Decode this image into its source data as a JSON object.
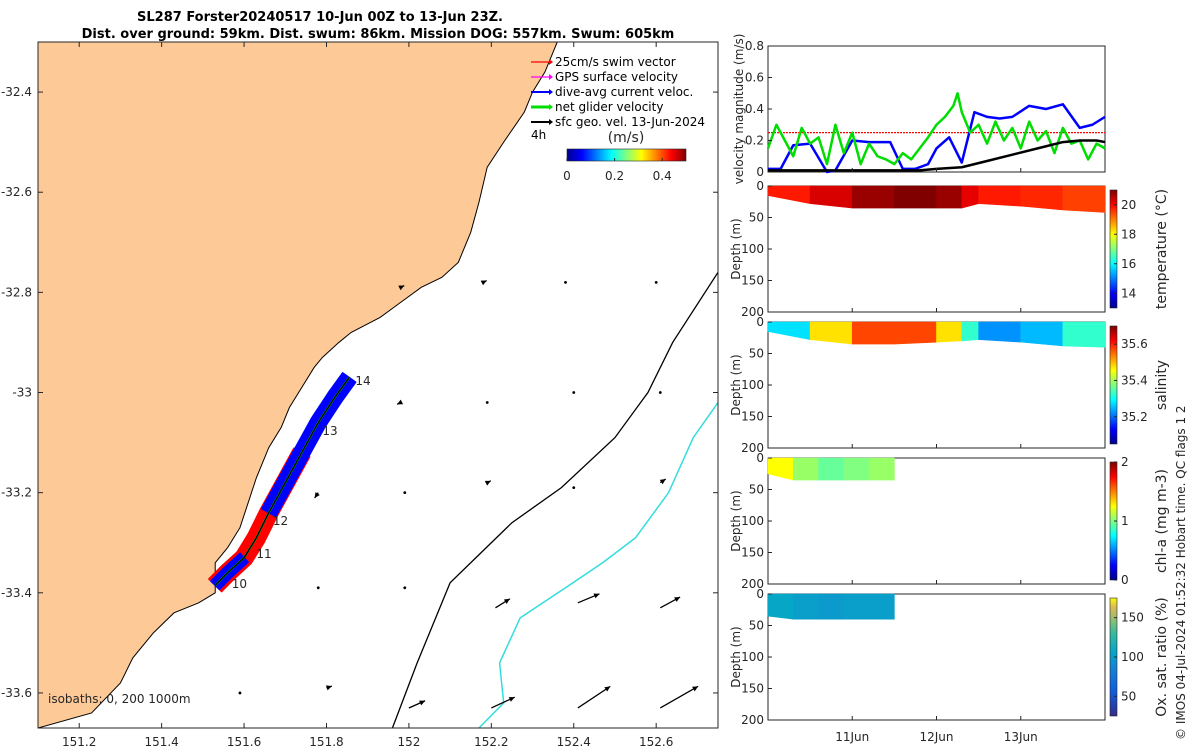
{
  "title": {
    "line1": "SL287 Forster20240517 10-Jun 00Z to 13-Jun 23Z.",
    "line2": "Dist. over ground: 59km. Dist. swum: 86km. Mission DOG: 557km. Swum: 605km"
  },
  "colors": {
    "land": "#fdca97",
    "swim_vector": "#ff0000",
    "gps_velocity": "#ff00ff",
    "dive_avg": "#0000ff",
    "net_glider": "#00dd00",
    "sfc_geo": "#000000",
    "isobath_200": "#000000",
    "isobath_1000": "#33dddd"
  },
  "chart_data": [
    {
      "type": "map",
      "name": "track-map",
      "xlim": [
        151.1,
        152.75
      ],
      "ylim": [
        -33.67,
        -32.3
      ],
      "xticks": [
        151.2,
        151.4,
        151.6,
        151.8,
        152,
        152.2,
        152.4,
        152.6
      ],
      "yticks": [
        -32.4,
        -32.6,
        -32.8,
        -33,
        -33.2,
        -33.4,
        -33.6
      ],
      "legend": {
        "placement": "top-right",
        "entries": [
          "25cm/s swim vector",
          "GPS surface velocity",
          "dive-avg current veloc.",
          "net glider velocity",
          "sfc geo. vel. 13-Jun-2024"
        ]
      },
      "interval_label": "4h",
      "colorbar": {
        "label": "(m/s)",
        "ticks": [
          0,
          0.2,
          0.4
        ],
        "range": [
          0,
          0.5
        ]
      },
      "isobath_label": "isobaths: 0, 200  1000m",
      "day_labels": [
        {
          "text": "10",
          "lon": 151.57,
          "lat": -33.39
        },
        {
          "text": "11",
          "lon": 151.63,
          "lat": -33.33
        },
        {
          "text": "12",
          "lon": 151.67,
          "lat": -33.265
        },
        {
          "text": "13",
          "lon": 151.79,
          "lat": -33.085
        },
        {
          "text": "14",
          "lon": 151.87,
          "lat": -32.985
        }
      ],
      "track": [
        [
          151.53,
          -33.385
        ],
        [
          151.56,
          -33.36
        ],
        [
          151.6,
          -33.33
        ],
        [
          151.63,
          -33.29
        ],
        [
          151.66,
          -33.24
        ],
        [
          151.7,
          -33.18
        ],
        [
          151.74,
          -33.12
        ],
        [
          151.78,
          -33.06
        ],
        [
          151.82,
          -33.01
        ],
        [
          151.855,
          -32.97
        ]
      ],
      "coastline": [
        [
          151.1,
          -33.67
        ],
        [
          151.23,
          -33.64
        ],
        [
          151.3,
          -33.58
        ],
        [
          151.33,
          -33.53
        ],
        [
          151.38,
          -33.48
        ],
        [
          151.43,
          -33.44
        ],
        [
          151.49,
          -33.42
        ],
        [
          151.53,
          -33.4
        ],
        [
          151.53,
          -33.34
        ],
        [
          151.56,
          -33.31
        ],
        [
          151.59,
          -33.27
        ],
        [
          151.63,
          -33.17
        ],
        [
          151.66,
          -33.11
        ],
        [
          151.69,
          -33.07
        ],
        [
          151.71,
          -33.03
        ],
        [
          151.74,
          -32.99
        ],
        [
          151.77,
          -32.95
        ],
        [
          151.79,
          -32.93
        ],
        [
          151.83,
          -32.9
        ],
        [
          151.86,
          -32.88
        ],
        [
          151.93,
          -32.85
        ],
        [
          151.98,
          -32.82
        ],
        [
          152.03,
          -32.79
        ],
        [
          152.08,
          -32.77
        ],
        [
          152.12,
          -32.74
        ],
        [
          152.15,
          -32.68
        ],
        [
          152.17,
          -32.62
        ],
        [
          152.19,
          -32.55
        ],
        [
          152.23,
          -32.5
        ],
        [
          152.28,
          -32.44
        ],
        [
          152.3,
          -32.4
        ],
        [
          152.33,
          -32.36
        ],
        [
          152.36,
          -32.3
        ]
      ],
      "isobath_200m": [
        [
          151.96,
          -33.67
        ],
        [
          152.02,
          -33.54
        ],
        [
          152.1,
          -33.38
        ],
        [
          152.25,
          -33.26
        ],
        [
          152.37,
          -33.19
        ],
        [
          152.5,
          -33.09
        ],
        [
          152.58,
          -33.0
        ],
        [
          152.64,
          -32.9
        ],
        [
          152.75,
          -32.76
        ]
      ],
      "isobath_1000m": [
        [
          152.17,
          -33.67
        ],
        [
          152.23,
          -33.62
        ],
        [
          152.22,
          -33.54
        ],
        [
          152.27,
          -33.45
        ],
        [
          152.38,
          -33.39
        ],
        [
          152.47,
          -33.34
        ],
        [
          152.55,
          -33.29
        ],
        [
          152.63,
          -33.2
        ],
        [
          152.69,
          -33.09
        ],
        [
          152.75,
          -33.02
        ]
      ],
      "sfc_geo_vectors": [
        [
          151.98,
          -32.79,
          0.02,
          0.01
        ],
        [
          152.18,
          -32.78,
          0.02,
          0.01
        ],
        [
          152.38,
          -32.78,
          0.02,
          0.0
        ],
        [
          152.6,
          -32.78,
          0.02,
          0.0
        ],
        [
          151.98,
          -33.02,
          -0.02,
          -0.01
        ],
        [
          152.19,
          -33.02,
          0.02,
          0.0
        ],
        [
          152.4,
          -33.0,
          0.02,
          0.0
        ],
        [
          152.61,
          -33.0,
          0.0,
          0.02
        ],
        [
          151.78,
          -33.2,
          -0.02,
          -0.03
        ],
        [
          151.99,
          -33.2,
          0.0,
          0.0
        ],
        [
          152.19,
          -33.18,
          0.02,
          0.01
        ],
        [
          152.4,
          -33.19,
          0.01,
          0.01
        ],
        [
          152.61,
          -33.18,
          0.03,
          0.02
        ],
        [
          151.78,
          -33.39,
          0.0,
          0.0
        ],
        [
          151.99,
          -33.39,
          0.0,
          0.0
        ],
        [
          152.21,
          -33.43,
          0.08,
          0.05
        ],
        [
          152.41,
          -33.42,
          0.12,
          0.05
        ],
        [
          152.61,
          -33.43,
          0.11,
          0.06
        ],
        [
          151.59,
          -33.6,
          0.0,
          0.0
        ],
        [
          151.8,
          -33.59,
          0.03,
          0.01
        ],
        [
          152.0,
          -33.63,
          0.09,
          0.04
        ],
        [
          152.2,
          -33.63,
          0.13,
          0.06
        ],
        [
          152.41,
          -33.63,
          0.18,
          0.12
        ],
        [
          152.61,
          -33.63,
          0.21,
          0.12
        ]
      ]
    },
    {
      "type": "line",
      "name": "velocity-panel",
      "ylabel": "velocity magnitude (m/s)",
      "ylim": [
        0,
        0.8
      ],
      "yticks": [
        0,
        0.2,
        0.4,
        0.6,
        0.8
      ],
      "xlim": [
        0,
        4.0
      ],
      "reference_speed": 0.25,
      "series": [
        {
          "key": "dive_avg",
          "x": [
            0,
            0.15,
            0.3,
            0.5,
            0.7,
            0.8,
            1.0,
            1.2,
            1.45,
            1.6,
            1.75,
            1.9,
            2.0,
            2.15,
            2.3,
            2.45,
            2.6,
            2.75,
            2.9,
            3.1,
            3.3,
            3.5,
            3.7,
            3.85,
            4.0
          ],
          "y": [
            0.02,
            0.02,
            0.17,
            0.18,
            0.0,
            0.01,
            0.2,
            0.19,
            0.19,
            0.02,
            0.02,
            0.05,
            0.15,
            0.22,
            0.06,
            0.38,
            0.35,
            0.34,
            0.35,
            0.42,
            0.4,
            0.43,
            0.28,
            0.3,
            0.35
          ]
        },
        {
          "key": "net_glider",
          "x": [
            0,
            0.1,
            0.2,
            0.3,
            0.4,
            0.5,
            0.6,
            0.7,
            0.8,
            0.9,
            1.0,
            1.1,
            1.2,
            1.3,
            1.4,
            1.5,
            1.6,
            1.7,
            1.8,
            1.9,
            2.0,
            2.1,
            2.2,
            2.25,
            2.3,
            2.4,
            2.5,
            2.6,
            2.7,
            2.8,
            2.9,
            3.0,
            3.1,
            3.2,
            3.3,
            3.4,
            3.5,
            3.6,
            3.7,
            3.8,
            3.9,
            4.0
          ],
          "y": [
            0.15,
            0.3,
            0.2,
            0.1,
            0.28,
            0.18,
            0.22,
            0.05,
            0.3,
            0.12,
            0.25,
            0.05,
            0.18,
            0.1,
            0.08,
            0.05,
            0.12,
            0.08,
            0.15,
            0.22,
            0.3,
            0.35,
            0.42,
            0.5,
            0.38,
            0.25,
            0.3,
            0.18,
            0.32,
            0.2,
            0.28,
            0.15,
            0.32,
            0.2,
            0.26,
            0.12,
            0.28,
            0.18,
            0.2,
            0.08,
            0.18,
            0.15
          ]
        },
        {
          "key": "sfc_geo",
          "x": [
            0,
            1.0,
            1.5,
            1.8,
            2.0,
            2.3,
            2.6,
            2.9,
            3.2,
            3.5,
            3.7,
            3.9,
            4.0
          ],
          "y": [
            0.01,
            0.01,
            0.01,
            0.01,
            0.02,
            0.03,
            0.07,
            0.11,
            0.15,
            0.19,
            0.2,
            0.2,
            0.19
          ]
        }
      ]
    },
    {
      "type": "heatmap",
      "name": "temperature-panel",
      "ylabel": "Depth (m)",
      "colorbar_label": "temperature (°C)",
      "ylim": [
        200,
        0
      ],
      "yticks": [
        0,
        50,
        100,
        150,
        200
      ],
      "clim": [
        13,
        21
      ],
      "cticks": [
        14,
        16,
        18,
        20
      ],
      "columns_x": [
        0.0,
        0.5,
        1.0,
        1.5,
        2.0,
        2.3,
        2.5,
        3.0,
        3.5,
        4.0
      ],
      "columns_depth": [
        15,
        28,
        35,
        35,
        35,
        35,
        28,
        32,
        38,
        42
      ],
      "columns_value": [
        19.6,
        20.0,
        20.6,
        21.0,
        21.0,
        20.6,
        19.8,
        19.8,
        19.6,
        19.4
      ]
    },
    {
      "type": "heatmap",
      "name": "salinity-panel",
      "ylabel": "Depth (m)",
      "colorbar_label": "salinity",
      "ylim": [
        200,
        0
      ],
      "yticks": [
        0,
        50,
        100,
        150,
        200
      ],
      "clim": [
        35.05,
        35.7
      ],
      "cticks": [
        35.2,
        35.4,
        35.6
      ],
      "columns_x": [
        0.0,
        0.5,
        1.0,
        1.5,
        2.0,
        2.3,
        2.5,
        3.0,
        3.5,
        4.0
      ],
      "columns_depth": [
        15,
        28,
        35,
        35,
        32,
        30,
        28,
        32,
        38,
        40
      ],
      "columns_value": [
        35.15,
        35.4,
        35.55,
        35.6,
        35.55,
        35.4,
        35.25,
        35.2,
        35.3,
        35.35
      ]
    },
    {
      "type": "heatmap",
      "name": "chla-panel",
      "ylabel": "Depth (m)",
      "colorbar_label": "chl-a (mg m-3)",
      "ylim": [
        200,
        0
      ],
      "yticks": [
        0,
        50,
        100,
        150,
        200
      ],
      "clim": [
        0,
        2
      ],
      "cticks": [
        0,
        1,
        2
      ],
      "columns_x": [
        0.0,
        0.3,
        0.6,
        0.9,
        1.2,
        1.5
      ],
      "columns_depth": [
        25,
        35,
        35,
        35,
        35,
        35
      ],
      "columns_value": [
        1.4,
        1.1,
        1.0,
        0.9,
        1.1,
        1.0
      ]
    },
    {
      "type": "heatmap",
      "name": "oxygen-panel",
      "ylabel": "Depth (m)",
      "colorbar_label": "Ox. sat. ratio (%)",
      "ylim": [
        200,
        0
      ],
      "yticks": [
        0,
        50,
        100,
        150,
        200
      ],
      "clim": [
        25,
        175
      ],
      "cticks": [
        50,
        100,
        150
      ],
      "columns_x": [
        0.0,
        0.3,
        0.6,
        0.9,
        1.2,
        1.5
      ],
      "columns_depth": [
        35,
        40,
        40,
        40,
        40,
        40
      ],
      "columns_value": [
        110,
        105,
        100,
        100,
        105,
        100
      ]
    }
  ],
  "time_axis": {
    "tick_labels": [
      {
        "x": 1.0,
        "text": "11Jun"
      },
      {
        "x": 2.0,
        "text": "12Jun"
      },
      {
        "x": 3.0,
        "text": "13Jun"
      }
    ]
  },
  "footer_note": "© IMOS 04-Jul-2024 01:52:32 Hobart time. QC flags 1  2"
}
